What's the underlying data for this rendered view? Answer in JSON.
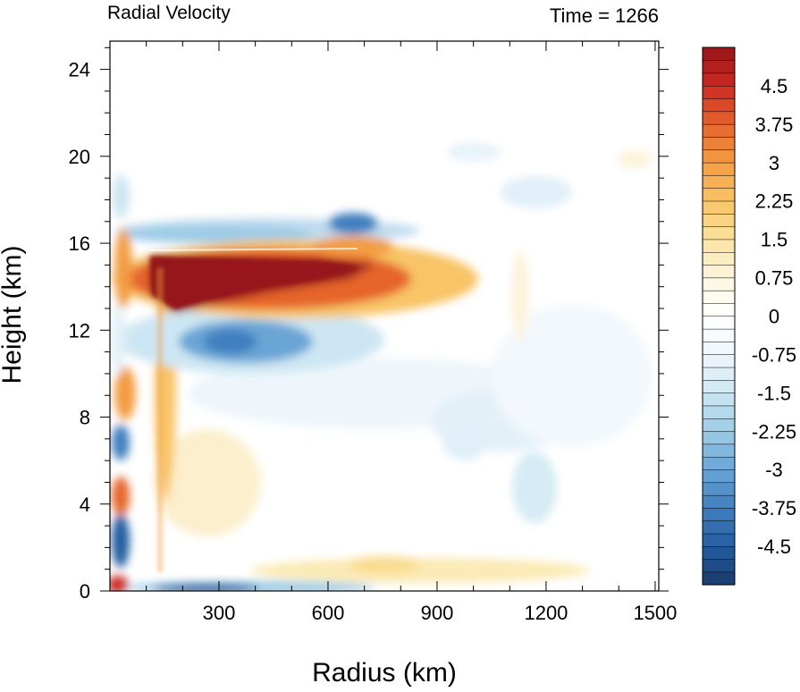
{
  "chart_data": {
    "type": "heatmap",
    "title": "Radial Velocity",
    "subtitle": "Time = 1266",
    "xlabel": "Radius (km)",
    "ylabel": "Height (km)",
    "xlim": [
      0,
      1510
    ],
    "ylim": [
      0,
      25.3
    ],
    "x_ticks": [
      300,
      600,
      900,
      1200,
      1500
    ],
    "y_ticks": [
      0,
      4,
      8,
      12,
      16,
      20,
      24
    ],
    "colorbar": {
      "min": -5.25,
      "max": 5.25,
      "step": 0.25,
      "tick_labels": [
        "4.5",
        "3.75",
        "3",
        "2.25",
        "1.5",
        "0.75",
        "0",
        "-0.75",
        "-1.5",
        "-2.25",
        "-3",
        "-3.75",
        "-4.5"
      ],
      "palette_neg_to_pos": [
        "#1a3a6b",
        "#245da0",
        "#3f7fc0",
        "#6aa5d6",
        "#9ccbe6",
        "#cde6f3",
        "#eef6fb",
        "#ffffff",
        "#fdf6df",
        "#fbe3a0",
        "#f8c466",
        "#f39c43",
        "#e5652c",
        "#cd2a22",
        "#96161a"
      ]
    },
    "features": [
      {
        "name": "upper-level outflow jet",
        "r": [
          150,
          700
        ],
        "z": [
          13.0,
          16.0
        ],
        "peak": 5.0
      },
      {
        "name": "outflow tongue",
        "r": [
          550,
          760
        ],
        "z": [
          14.8,
          16.2
        ],
        "peak": 2.0
      },
      {
        "name": "inflow below outflow",
        "r": [
          150,
          600
        ],
        "z": [
          10.3,
          13.3
        ],
        "peak": -3.5
      },
      {
        "name": "inflow above outflow",
        "r": [
          30,
          720
        ],
        "z": [
          16.0,
          17.2
        ],
        "peak": -2.0
      },
      {
        "name": "boundary-layer inflow",
        "r": [
          0,
          420
        ],
        "z": [
          0.0,
          0.6
        ],
        "peak": -4.0
      },
      {
        "name": "mid-level inflow",
        "r": [
          350,
          1280
        ],
        "z": [
          5.5,
          10.0
        ],
        "peak": -1.0
      },
      {
        "name": "upper weak inflow",
        "r": [
          900,
          1400
        ],
        "z": [
          17.0,
          21.0
        ],
        "peak": -0.8
      },
      {
        "name": "near-surface outflow",
        "r": [
          400,
          1200
        ],
        "z": [
          0.2,
          2.2
        ],
        "peak": 0.8
      },
      {
        "name": "eyewall-column outflow",
        "r": [
          100,
          200
        ],
        "z": [
          1.0,
          13.0
        ],
        "peak": 2.5
      },
      {
        "name": "inner-core oscillations",
        "r": [
          0,
          100
        ],
        "z": [
          0.0,
          21.0
        ],
        "peak": 5.0
      }
    ]
  }
}
